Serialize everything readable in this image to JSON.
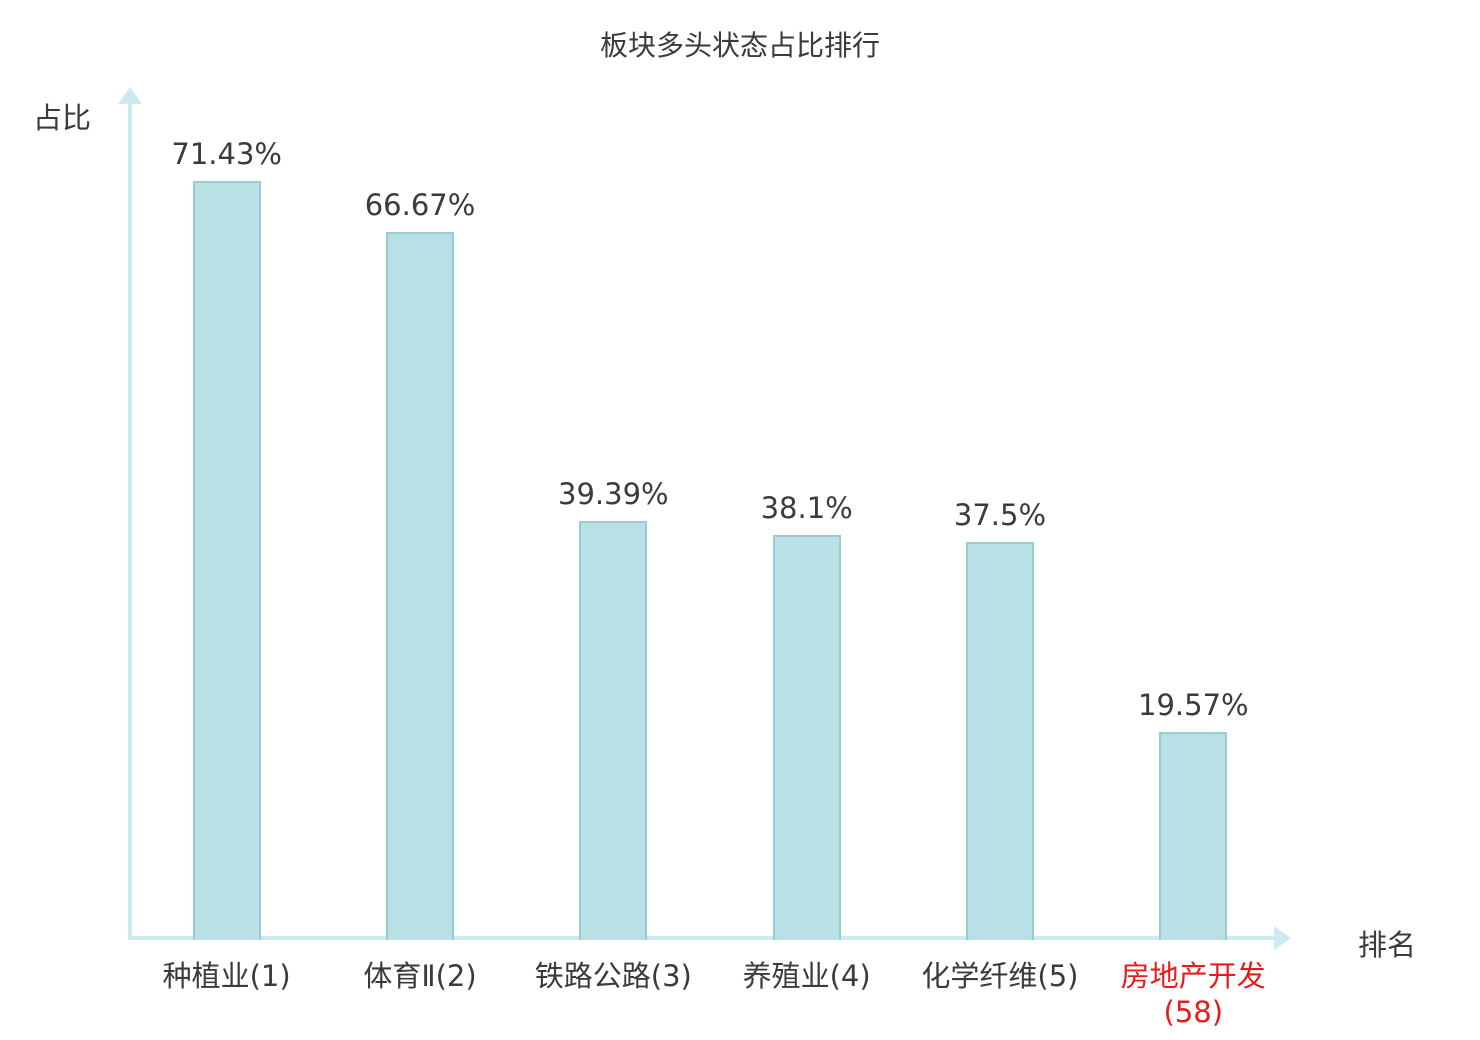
{
  "colors": {
    "bg": "#ffffff",
    "text": "#3b3b3b",
    "axis": "#cdebee",
    "bar_fill": "#b9e0e4",
    "bar_border": "#96ccd2",
    "highlight": "#e51c1c"
  },
  "chart_data": {
    "type": "bar",
    "title": "板块多头状态占比排行",
    "ylabel": "占比",
    "xlabel": "排名",
    "categories": [
      "种植业(1)",
      "体育Ⅱ(2)",
      "铁路公路(3)",
      "养殖业(4)",
      "化学纤维(5)",
      "房地产开发(58)"
    ],
    "values": [
      71.43,
      66.67,
      39.39,
      38.1,
      37.5,
      19.57
    ],
    "value_labels": [
      "71.43%",
      "66.67%",
      "39.39%",
      "38.1%",
      "37.5%",
      "19.57%"
    ],
    "highlight_index": 5,
    "ylim": [
      0,
      80
    ],
    "grid": false,
    "legend": "none"
  }
}
